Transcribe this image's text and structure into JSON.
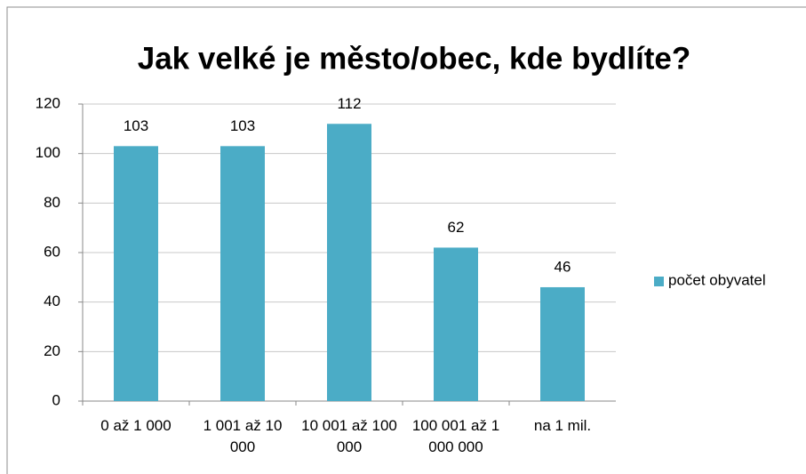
{
  "chart_data": {
    "type": "bar",
    "title": "Jak velké je město/obec, kde bydlíte?",
    "categories": [
      "0 až 1 000",
      "1 001 až 10 000",
      "10 001 až 100 000",
      "100 001 až 1 000 000",
      "na 1 mil."
    ],
    "series": [
      {
        "name": "počet obyvatel",
        "color": "#4bacc6",
        "values": [
          103,
          103,
          112,
          62,
          46
        ]
      }
    ],
    "ylim": [
      0,
      120
    ],
    "yticks": [
      0,
      20,
      40,
      60,
      80,
      100,
      120
    ],
    "grid": true,
    "legend": "right"
  }
}
